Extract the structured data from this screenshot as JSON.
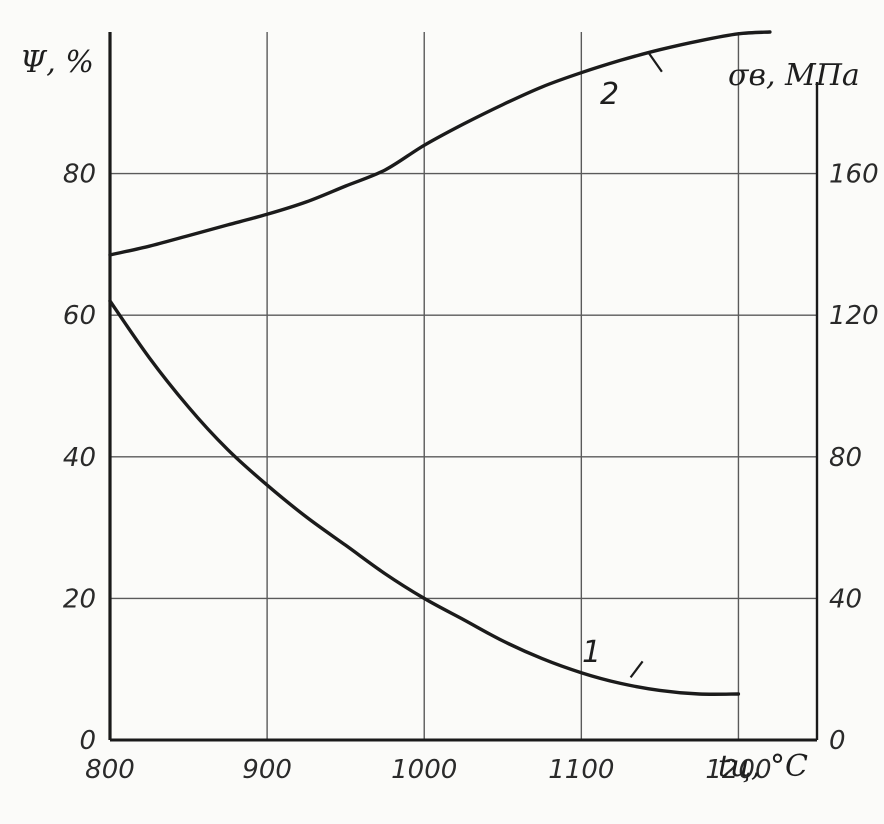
{
  "chart_data": {
    "type": "line",
    "x_axis": {
      "label": "tц, °C",
      "range": [
        800,
        1250
      ],
      "ticks": [
        800,
        900,
        1000,
        1100,
        1200
      ]
    },
    "y_left": {
      "label": "Ψ, %",
      "range": [
        0,
        100
      ],
      "ticks": [
        0,
        20,
        40,
        60,
        80
      ]
    },
    "y_right": {
      "label": "σв, МПа",
      "range": [
        0,
        200
      ],
      "ticks": [
        0,
        40,
        80,
        120,
        160
      ]
    },
    "grid": true,
    "series": [
      {
        "name": "1",
        "axis": "left",
        "x": [
          800,
          825,
          850,
          875,
          900,
          925,
          950,
          975,
          1000,
          1025,
          1050,
          1075,
          1100,
          1125,
          1150,
          1175,
          1200
        ],
        "y": [
          62,
          54,
          47,
          41,
          36,
          31.5,
          27.5,
          23.5,
          20,
          17,
          14,
          11.5,
          9.5,
          8,
          7,
          6.5,
          6.5
        ]
      },
      {
        "name": "2",
        "axis": "right",
        "x": [
          800,
          825,
          850,
          875,
          900,
          925,
          950,
          975,
          1000,
          1025,
          1050,
          1075,
          1100,
          1125,
          1150,
          1175,
          1200,
          1220
        ],
        "y": [
          137,
          139.5,
          142.5,
          145.5,
          148.5,
          152,
          156.5,
          161,
          168,
          174,
          179.5,
          184.5,
          188.5,
          192,
          195,
          197.5,
          199.5,
          200
        ]
      }
    ]
  }
}
